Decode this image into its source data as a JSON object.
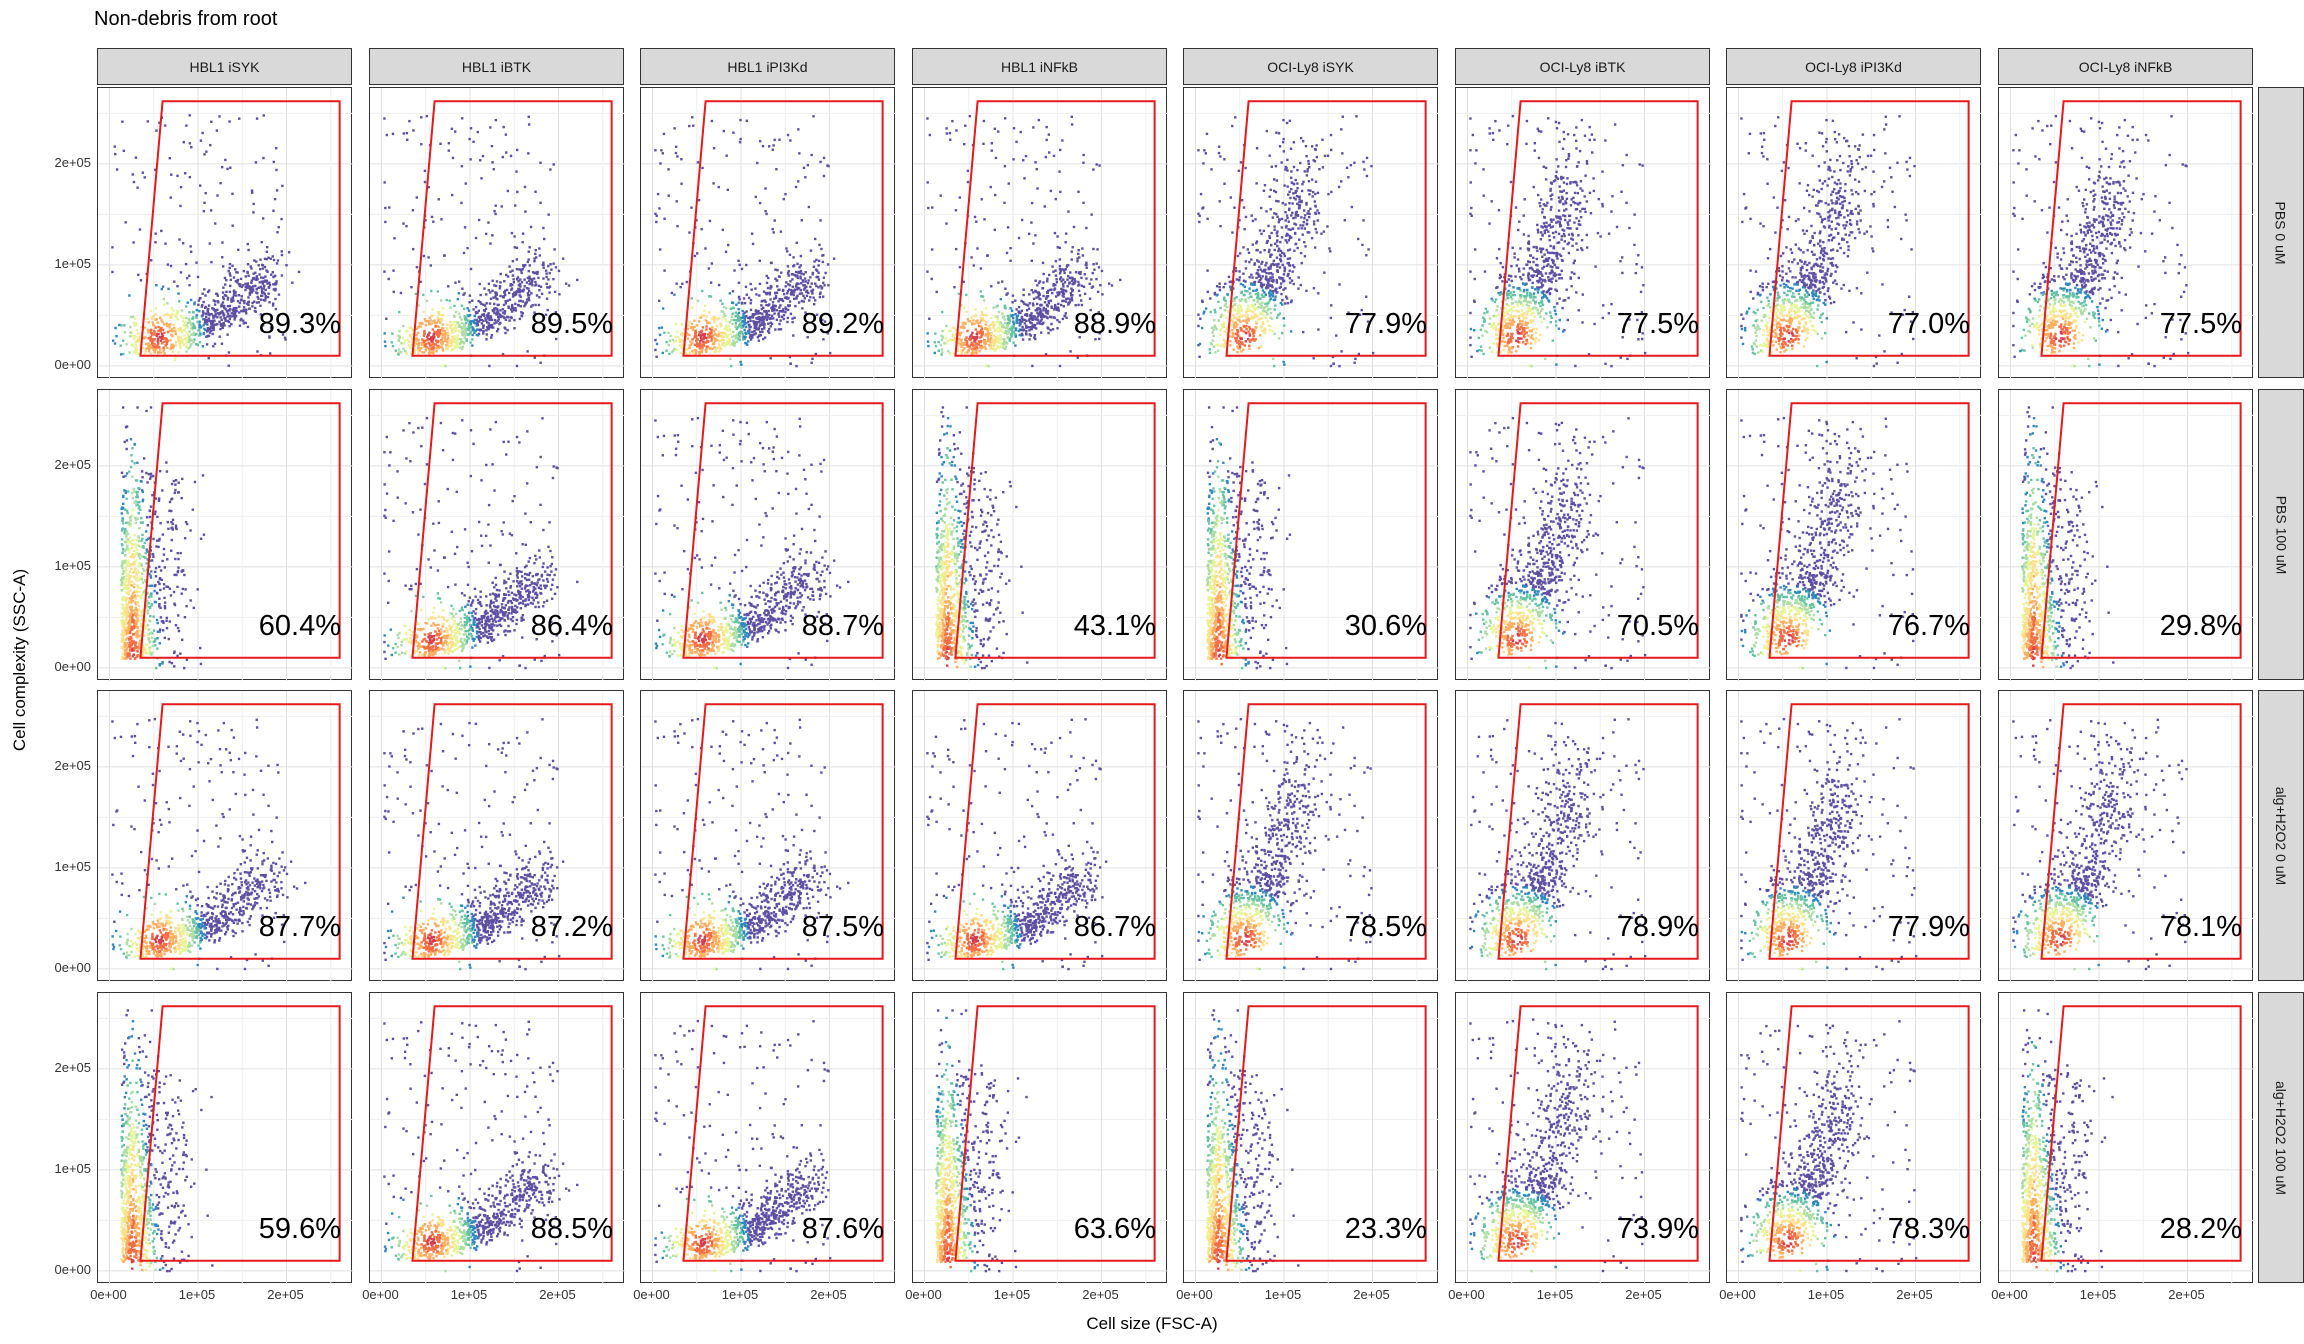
{
  "chart_data": {
    "type": "scatter",
    "title": "Non-debris from root",
    "xlabel": "Cell size (FSC-A)",
    "ylabel": "Cell complexity (SSC-A)",
    "xlim": [
      0,
      262144
    ],
    "ylim": [
      0,
      262144
    ],
    "x_ticks": [
      "0e+00",
      "1e+05",
      "2e+05"
    ],
    "y_ticks": [
      "0e+00",
      "1e+05",
      "2e+05"
    ],
    "grid": true,
    "columns": [
      "HBL1 iSYK",
      "HBL1 iBTK",
      "HBL1 iPI3Kd",
      "HBL1 iNFkB",
      "OCI-Ly8 iSYK",
      "OCI-Ly8 iBTK",
      "OCI-Ly8 iPI3Kd",
      "OCI-Ly8 iNFkB"
    ],
    "rows": [
      "PBS 0 uM",
      "PBS 100 uM",
      "alg+H2O2 0 uM",
      "alg+H2O2 100 uM"
    ],
    "gate_percentages": [
      [
        "89.3%",
        "89.5%",
        "89.2%",
        "88.9%",
        "77.9%",
        "77.5%",
        "77.0%",
        "77.5%"
      ],
      [
        "60.4%",
        "86.4%",
        "88.7%",
        "43.1%",
        "30.6%",
        "70.5%",
        "76.7%",
        "29.8%"
      ],
      [
        "87.7%",
        "87.2%",
        "87.5%",
        "86.7%",
        "78.5%",
        "78.9%",
        "77.9%",
        "78.1%"
      ],
      [
        "59.6%",
        "88.5%",
        "87.6%",
        "63.6%",
        "23.3%",
        "73.9%",
        "78.3%",
        "28.2%"
      ]
    ],
    "gate": {
      "color": "#e41a1c",
      "vertices": [
        [
          62000,
          10000
        ],
        [
          260000,
          10000
        ],
        [
          260000,
          262000
        ],
        [
          60000,
          262000
        ],
        [
          35000,
          10000
        ]
      ]
    },
    "color_scale": [
      "#5e4fa2",
      "#3288bd",
      "#66c2a5",
      "#abdda4",
      "#e6f598",
      "#fee08b",
      "#fdae61",
      "#f46d43",
      "#d53e4f"
    ]
  }
}
